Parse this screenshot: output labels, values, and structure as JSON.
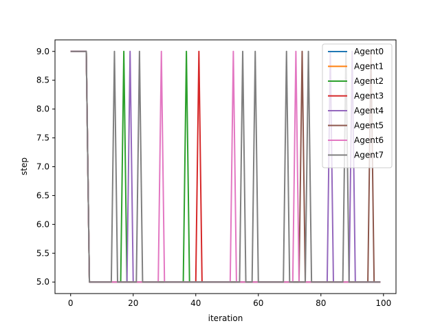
{
  "chart_data": {
    "type": "line",
    "xlabel": "iteration",
    "ylabel": "step",
    "xlim": [
      -5,
      104
    ],
    "ylim": [
      4.8,
      9.2
    ],
    "xticks": [
      0,
      20,
      40,
      60,
      80,
      100
    ],
    "yticks": [
      5.0,
      5.5,
      6.0,
      6.5,
      7.0,
      7.5,
      8.0,
      8.5,
      9.0
    ],
    "grid": false,
    "legend": "top-right",
    "series": [
      {
        "name": "Agent0",
        "color": "#1f77b4",
        "spikes": []
      },
      {
        "name": "Agent1",
        "color": "#ff7f0e",
        "spikes": []
      },
      {
        "name": "Agent2",
        "color": "#2ca02c",
        "spikes": [
          17,
          37
        ]
      },
      {
        "name": "Agent3",
        "color": "#d62728",
        "spikes": [
          41
        ]
      },
      {
        "name": "Agent4",
        "color": "#9467bd",
        "spikes": [
          19,
          83,
          90
        ]
      },
      {
        "name": "Agent5",
        "color": "#8c564b",
        "spikes": [
          74,
          96
        ]
      },
      {
        "name": "Agent6",
        "color": "#e377c2",
        "spikes": [
          29,
          52,
          72
        ]
      },
      {
        "name": "Agent7",
        "color": "#7f7f7f",
        "spikes": [
          14,
          22,
          55,
          59,
          69,
          76,
          88
        ]
      }
    ]
  }
}
